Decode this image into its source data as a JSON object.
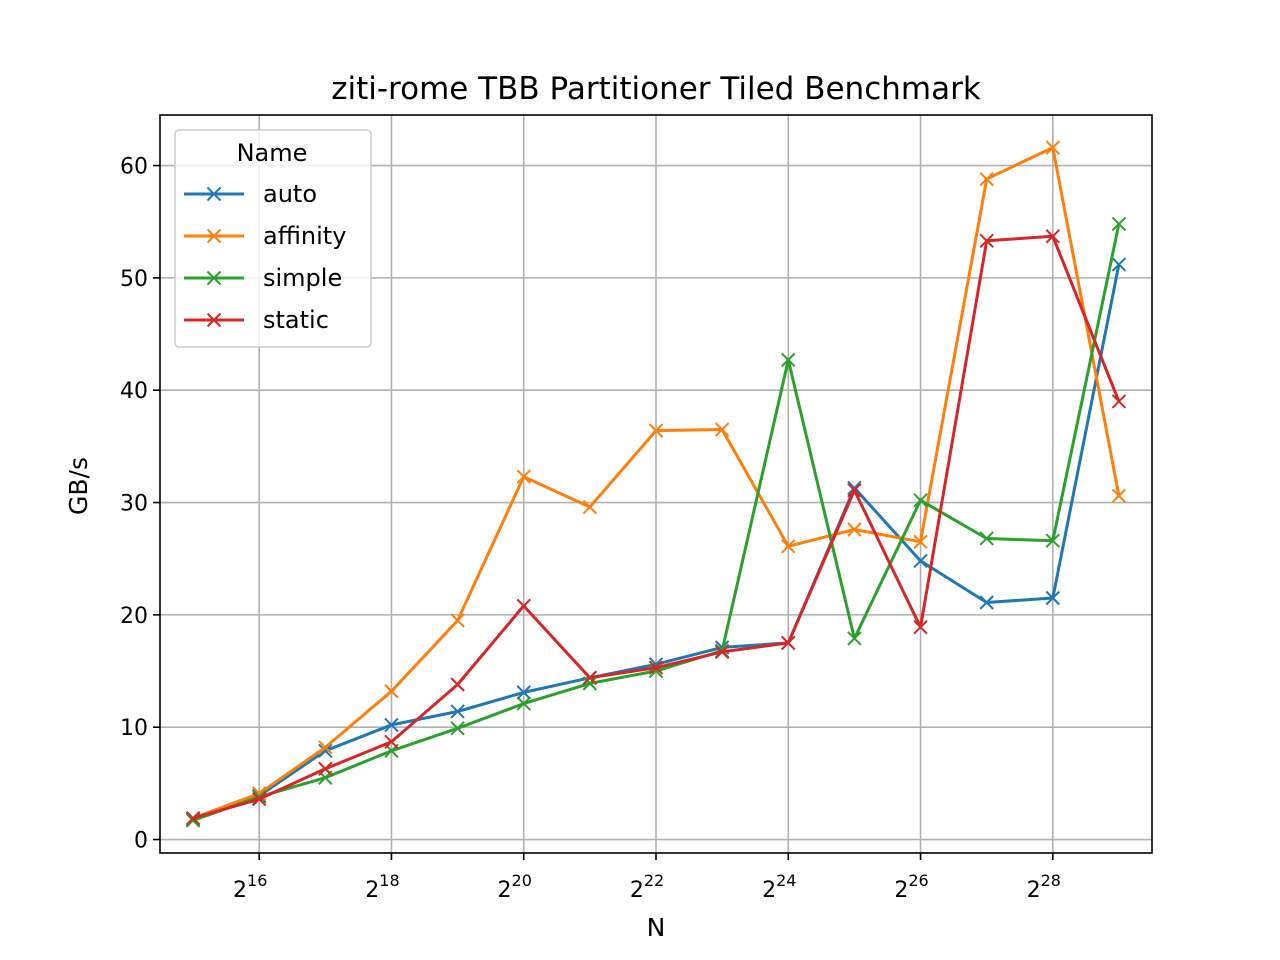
{
  "chart_data": {
    "type": "line",
    "title": "ziti-rome TBB Partitioner Tiled Benchmark",
    "xlabel": "N",
    "ylabel": "GB/s",
    "x_scale": "log2",
    "x_exponents": [
      15,
      16,
      17,
      18,
      19,
      20,
      21,
      22,
      23,
      24,
      25,
      26,
      27,
      28,
      29
    ],
    "x_tick_labels": [
      "2",
      "2",
      "2",
      "2",
      "2",
      "2",
      "2"
    ],
    "x_tick_exponents": [
      "16",
      "18",
      "20",
      "22",
      "24",
      "26",
      "28"
    ],
    "y_tick_labels": [
      "0",
      "10",
      "20",
      "30",
      "40",
      "50",
      "60"
    ],
    "ylim": [
      -1.2,
      64.5
    ],
    "grid": true,
    "legend_title": "Name",
    "legend_position": "upper-left",
    "marker": "x",
    "series": [
      {
        "name": "auto",
        "color": "#1f77b4",
        "values": [
          1.8,
          3.9,
          7.9,
          10.2,
          11.4,
          13.1,
          14.4,
          15.6,
          17.1,
          17.5,
          31.3,
          24.8,
          21.1,
          21.5,
          51.2
        ]
      },
      {
        "name": "affinity",
        "color": "#ff7f0e",
        "values": [
          1.9,
          4.1,
          8.2,
          13.2,
          19.5,
          32.3,
          29.6,
          36.4,
          36.5,
          26.1,
          27.6,
          26.5,
          58.8,
          61.6,
          30.6
        ]
      },
      {
        "name": "simple",
        "color": "#2ca02c",
        "values": [
          1.7,
          3.8,
          5.5,
          7.9,
          9.9,
          12.1,
          13.9,
          15.0,
          16.8,
          42.7,
          17.9,
          30.2,
          26.8,
          26.6,
          54.8
        ]
      },
      {
        "name": "static",
        "color": "#d62728",
        "values": [
          1.9,
          3.6,
          6.3,
          8.7,
          13.8,
          20.8,
          14.4,
          15.3,
          16.7,
          17.5,
          31.1,
          18.9,
          53.3,
          53.7,
          39.0
        ]
      }
    ]
  }
}
